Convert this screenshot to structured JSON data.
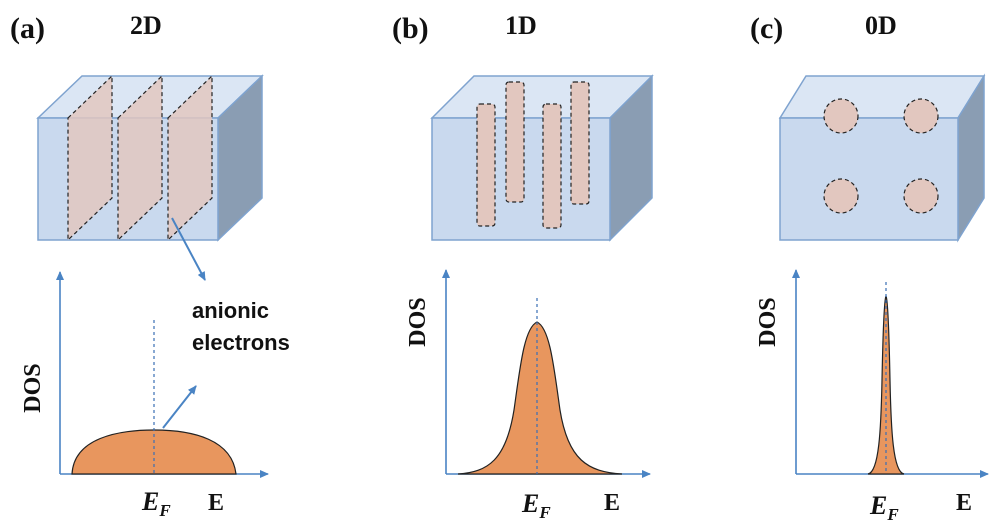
{
  "panels": [
    {
      "tag": "(a)",
      "dim": "2D",
      "ylabel": "DOS",
      "xlabel": "E",
      "fermi_main": "E",
      "fermi_sub": "F"
    },
    {
      "tag": "(b)",
      "dim": "1D",
      "ylabel": "DOS",
      "xlabel": "E",
      "fermi_main": "E",
      "fermi_sub": "F"
    },
    {
      "tag": "(c)",
      "dim": "0D",
      "ylabel": "DOS",
      "xlabel": "E",
      "fermi_main": "E",
      "fermi_sub": "F"
    }
  ],
  "annotation": {
    "line1": "anionic",
    "line2": "electrons"
  },
  "colors": {
    "box_front": "#c9d9ee",
    "box_top": "#dbe6f4",
    "box_side": "#8a9db3",
    "box_edge": "#7fa3cf",
    "electron_fill": "#e2c7bf",
    "dos_fill": "#e8965e",
    "axis": "#4a84c4"
  }
}
